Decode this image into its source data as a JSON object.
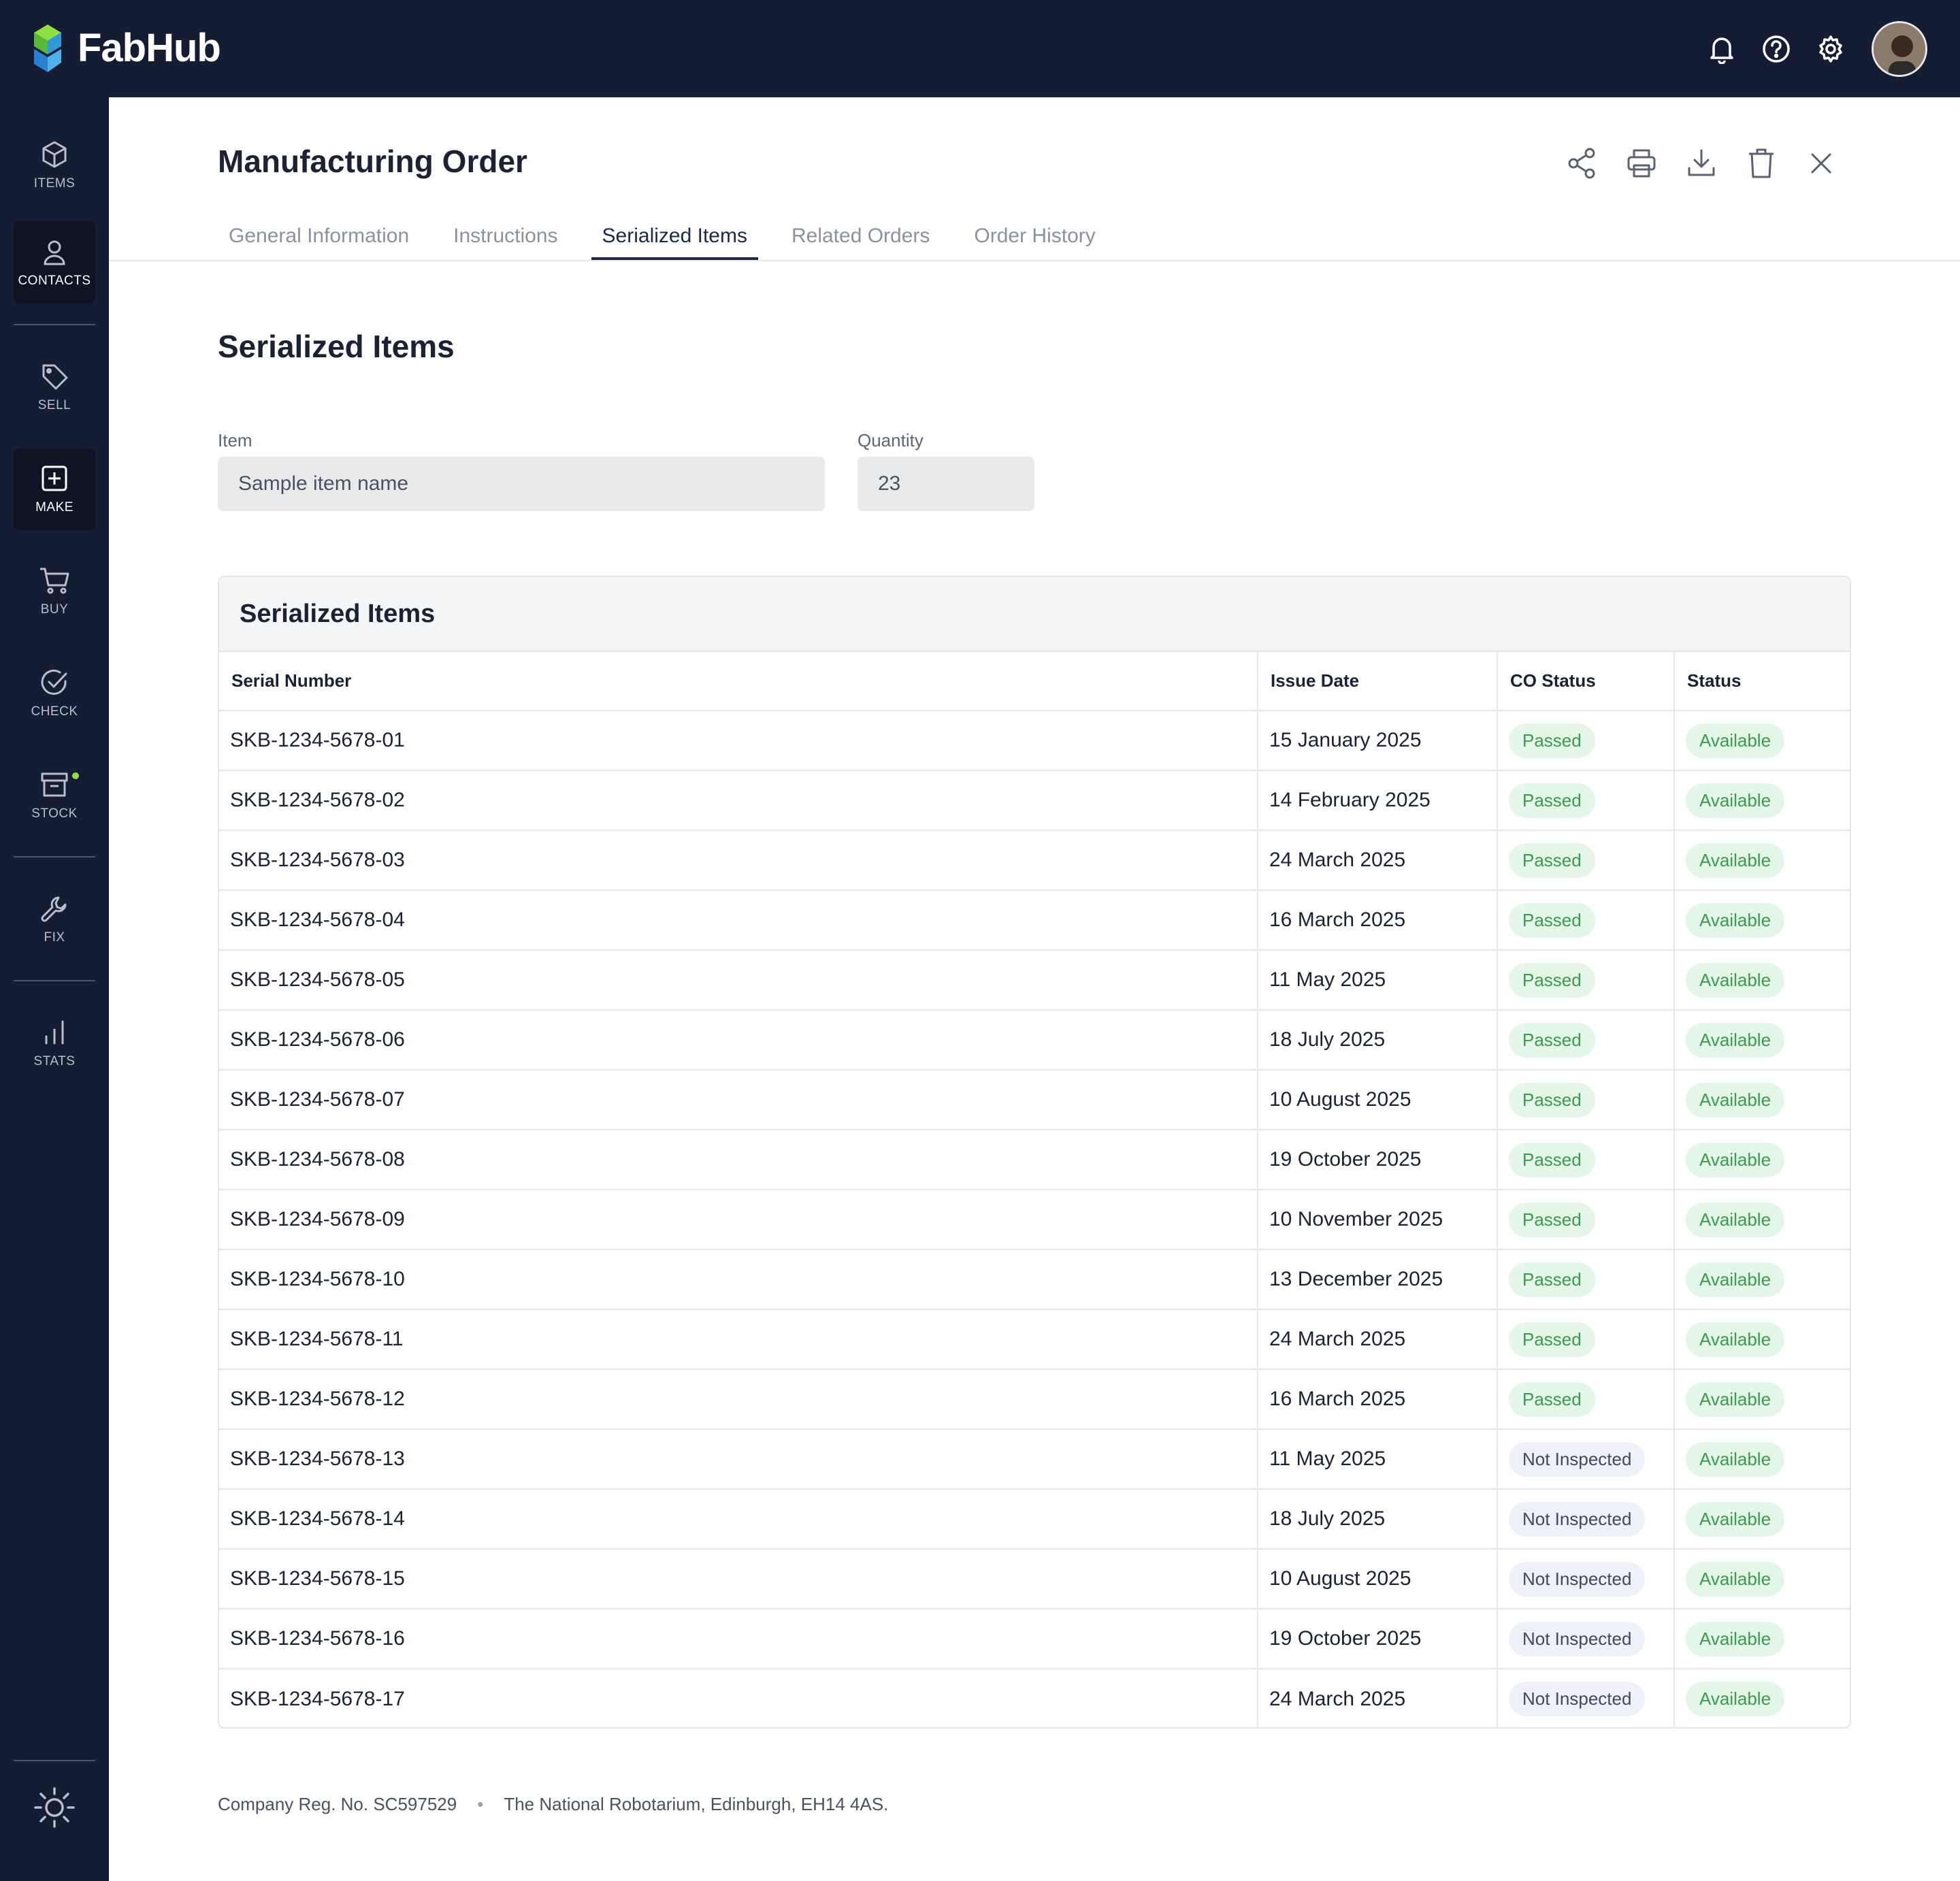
{
  "app": {
    "name": "FabHub"
  },
  "topbar": {
    "icons": [
      "bell-icon",
      "help-icon",
      "gear-icon"
    ]
  },
  "sidebar": {
    "items": [
      {
        "label": "ITEMS",
        "icon": "cube-icon"
      },
      {
        "label": "CONTACTS",
        "icon": "user-icon"
      },
      {
        "label": "SELL",
        "icon": "tag-icon"
      },
      {
        "label": "MAKE",
        "icon": "plus-square-icon"
      },
      {
        "label": "BUY",
        "icon": "cart-icon"
      },
      {
        "label": "CHECK",
        "icon": "check-circle-icon"
      },
      {
        "label": "STOCK",
        "icon": "archive-icon"
      },
      {
        "label": "FIX",
        "icon": "wrench-icon"
      },
      {
        "label": "STATS",
        "icon": "bar-chart-icon"
      }
    ],
    "active": "MAKE",
    "theme_icon": "sun-icon"
  },
  "page": {
    "title": "Manufacturing Order",
    "actions": [
      "share-icon",
      "print-icon",
      "download-icon",
      "trash-icon",
      "close-icon"
    ],
    "tabs": [
      {
        "label": "General Information"
      },
      {
        "label": "Instructions"
      },
      {
        "label": "Serialized Items",
        "active": true
      },
      {
        "label": "Related Orders"
      },
      {
        "label": "Order History"
      }
    ],
    "section_title": "Serialized Items"
  },
  "form": {
    "item_label": "Item",
    "item_value": "Sample item name",
    "quantity_label": "Quantity",
    "quantity_value": "23"
  },
  "table": {
    "title": "Serialized Items",
    "columns": [
      "Serial Number",
      "Issue Date",
      "CO Status",
      "Status"
    ],
    "rows": [
      [
        "SKB-1234-5678-01",
        "15 January 2025",
        "Passed",
        "Available"
      ],
      [
        "SKB-1234-5678-02",
        "14 February 2025",
        "Passed",
        "Available"
      ],
      [
        "SKB-1234-5678-03",
        "24 March 2025",
        "Passed",
        "Available"
      ],
      [
        "SKB-1234-5678-04",
        "16 March 2025",
        "Passed",
        "Available"
      ],
      [
        "SKB-1234-5678-05",
        "11 May 2025",
        "Passed",
        "Available"
      ],
      [
        "SKB-1234-5678-06",
        "18 July 2025",
        "Passed",
        "Available"
      ],
      [
        "SKB-1234-5678-07",
        "10 August 2025",
        "Passed",
        "Available"
      ],
      [
        "SKB-1234-5678-08",
        "19 October 2025",
        "Passed",
        "Available"
      ],
      [
        "SKB-1234-5678-09",
        "10 November 2025",
        "Passed",
        "Available"
      ],
      [
        "SKB-1234-5678-10",
        "13 December 2025",
        "Passed",
        "Available"
      ],
      [
        "SKB-1234-5678-11",
        "24 March 2025",
        "Passed",
        "Available"
      ],
      [
        "SKB-1234-5678-12",
        "16 March 2025",
        "Passed",
        "Available"
      ],
      [
        "SKB-1234-5678-13",
        "11 May 2025",
        "Not Inspected",
        "Available"
      ],
      [
        "SKB-1234-5678-14",
        "18 July 2025",
        "Not Inspected",
        "Available"
      ],
      [
        "SKB-1234-5678-15",
        "10 August 2025",
        "Not Inspected",
        "Available"
      ],
      [
        "SKB-1234-5678-16",
        "19 October 2025",
        "Not Inspected",
        "Available"
      ],
      [
        "SKB-1234-5678-17",
        "24 March 2025",
        "Not Inspected",
        "Available"
      ]
    ]
  },
  "footer": {
    "reg": "Company Reg. No. SC597529",
    "separator": "•",
    "address": "The National Robotarium, Edinburgh, EH14 4AS."
  },
  "colors": {
    "nav_bg": "#141d33",
    "accent": "#1a2a4a",
    "pill_green_bg": "#e3f6e7",
    "pill_green_text": "#3c9a52",
    "pill_grey_bg": "#eef2f8"
  }
}
